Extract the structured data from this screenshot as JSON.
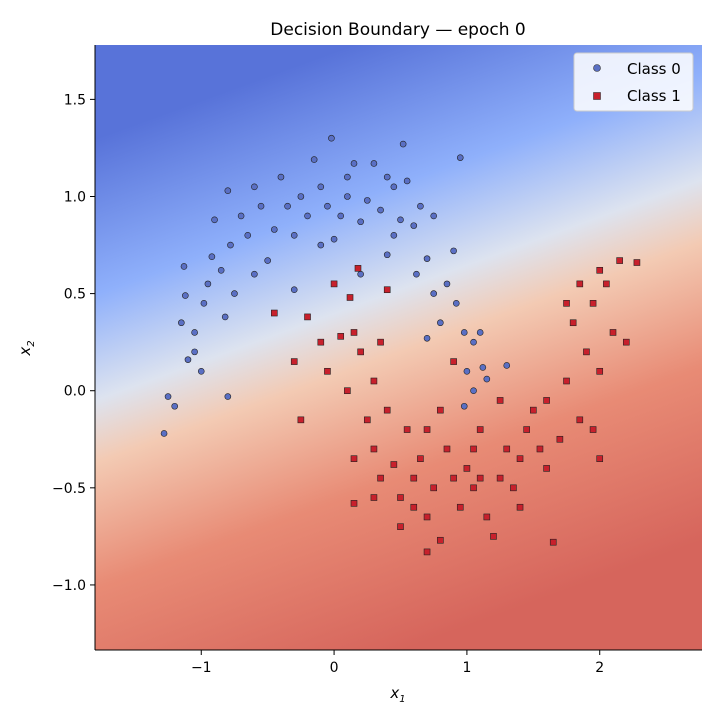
{
  "chart_data": {
    "type": "scatter",
    "title": "Decision Boundary — epoch 0",
    "xlabel": "x",
    "xlabel_sub": "1",
    "ylabel": "x",
    "ylabel_sub": "2",
    "xlim": [
      -1.8,
      2.77
    ],
    "ylim": [
      -1.335,
      1.78
    ],
    "xticks": [
      -1,
      0,
      1,
      2
    ],
    "xtick_labels": [
      "−1",
      "0",
      "1",
      "2"
    ],
    "yticks": [
      -1.0,
      -0.5,
      0.0,
      0.5,
      1.0,
      1.5
    ],
    "ytick_labels": [
      "−1.0",
      "−0.5",
      "0.0",
      "0.5",
      "1.0",
      "1.5"
    ],
    "grid": false,
    "legend_position": "top-right",
    "background": "decision-surface coolwarm gradient (blue top-left, red bottom-right)",
    "colors": {
      "class0": "#5a6fc4",
      "class1": "#c8202c",
      "blue": "#3f60d8",
      "red": "#d6605a"
    },
    "series": [
      {
        "name": "Class 0",
        "marker": "circle",
        "points": [
          [
            -1.28,
            -0.22
          ],
          [
            -1.25,
            -0.03
          ],
          [
            -1.2,
            -0.08
          ],
          [
            -1.13,
            0.64
          ],
          [
            -1.12,
            0.49
          ],
          [
            -1.15,
            0.35
          ],
          [
            -1.1,
            0.16
          ],
          [
            -1.05,
            0.2
          ],
          [
            -1.0,
            0.1
          ],
          [
            -0.98,
            0.45
          ],
          [
            -0.95,
            0.55
          ],
          [
            -0.92,
            0.69
          ],
          [
            -0.9,
            0.88
          ],
          [
            -0.85,
            0.62
          ],
          [
            -0.82,
            0.38
          ],
          [
            -0.8,
            1.03
          ],
          [
            -0.78,
            0.75
          ],
          [
            -0.75,
            0.5
          ],
          [
            -0.8,
            -0.03
          ],
          [
            -0.7,
            0.9
          ],
          [
            -0.65,
            0.8
          ],
          [
            -0.6,
            1.05
          ],
          [
            -0.55,
            0.95
          ],
          [
            -0.5,
            0.67
          ],
          [
            -0.45,
            0.83
          ],
          [
            -0.4,
            1.1
          ],
          [
            -0.35,
            0.95
          ],
          [
            -0.3,
            0.8
          ],
          [
            -0.25,
            1.0
          ],
          [
            -0.2,
            0.9
          ],
          [
            -0.15,
            1.19
          ],
          [
            -0.1,
            1.05
          ],
          [
            -0.05,
            0.95
          ],
          [
            -0.02,
            1.3
          ],
          [
            0.0,
            0.78
          ],
          [
            0.05,
            0.9
          ],
          [
            0.1,
            1.1
          ],
          [
            0.15,
            1.17
          ],
          [
            0.2,
            0.87
          ],
          [
            0.25,
            0.98
          ],
          [
            0.3,
            1.17
          ],
          [
            0.35,
            0.93
          ],
          [
            0.4,
            1.1
          ],
          [
            0.45,
            0.8
          ],
          [
            0.5,
            0.88
          ],
          [
            0.52,
            1.27
          ],
          [
            0.55,
            1.08
          ],
          [
            0.6,
            0.85
          ],
          [
            0.62,
            0.6
          ],
          [
            0.65,
            0.95
          ],
          [
            0.7,
            0.68
          ],
          [
            0.75,
            0.5
          ],
          [
            0.75,
            0.9
          ],
          [
            0.8,
            0.35
          ],
          [
            0.85,
            0.55
          ],
          [
            0.9,
            0.72
          ],
          [
            0.95,
            1.2
          ],
          [
            0.92,
            0.45
          ],
          [
            0.98,
            0.3
          ],
          [
            1.0,
            0.1
          ],
          [
            1.05,
            0.25
          ],
          [
            1.1,
            0.3
          ],
          [
            1.12,
            0.12
          ],
          [
            1.15,
            0.06
          ],
          [
            1.05,
            0.0
          ],
          [
            0.98,
            -0.08
          ],
          [
            1.3,
            0.13
          ],
          [
            0.7,
            0.27
          ],
          [
            -0.3,
            0.52
          ],
          [
            0.2,
            0.6
          ],
          [
            -0.1,
            0.75
          ],
          [
            0.4,
            0.7
          ],
          [
            -1.05,
            0.3
          ],
          [
            -0.6,
            0.6
          ],
          [
            0.1,
            1.0
          ],
          [
            0.45,
            1.05
          ]
        ]
      },
      {
        "name": "Class 1",
        "marker": "square",
        "points": [
          [
            -0.45,
            0.4
          ],
          [
            -0.3,
            0.15
          ],
          [
            -0.25,
            -0.15
          ],
          [
            -0.2,
            0.38
          ],
          [
            -0.1,
            0.25
          ],
          [
            0.0,
            0.55
          ],
          [
            -0.05,
            0.1
          ],
          [
            0.05,
            0.28
          ],
          [
            0.1,
            0.0
          ],
          [
            0.12,
            0.48
          ],
          [
            0.15,
            0.3
          ],
          [
            0.18,
            0.63
          ],
          [
            0.2,
            0.2
          ],
          [
            0.25,
            -0.15
          ],
          [
            0.3,
            0.05
          ],
          [
            0.35,
            0.25
          ],
          [
            0.4,
            0.52
          ],
          [
            0.15,
            -0.35
          ],
          [
            0.15,
            -0.58
          ],
          [
            0.3,
            -0.3
          ],
          [
            0.35,
            -0.45
          ],
          [
            0.45,
            -0.38
          ],
          [
            0.5,
            -0.55
          ],
          [
            0.5,
            -0.7
          ],
          [
            0.6,
            -0.45
          ],
          [
            0.65,
            -0.35
          ],
          [
            0.7,
            -0.65
          ],
          [
            0.7,
            -0.83
          ],
          [
            0.75,
            -0.5
          ],
          [
            0.8,
            -0.77
          ],
          [
            0.85,
            -0.3
          ],
          [
            0.9,
            -0.45
          ],
          [
            0.95,
            -0.6
          ],
          [
            1.0,
            -0.4
          ],
          [
            1.05,
            -0.5
          ],
          [
            1.1,
            -0.2
          ],
          [
            1.15,
            -0.65
          ],
          [
            1.2,
            -0.75
          ],
          [
            1.25,
            -0.45
          ],
          [
            1.3,
            -0.3
          ],
          [
            1.35,
            -0.5
          ],
          [
            1.4,
            -0.35
          ],
          [
            1.45,
            -0.2
          ],
          [
            1.5,
            -0.1
          ],
          [
            1.55,
            -0.3
          ],
          [
            1.6,
            -0.05
          ],
          [
            1.65,
            -0.78
          ],
          [
            1.7,
            -0.25
          ],
          [
            1.75,
            0.05
          ],
          [
            1.8,
            0.35
          ],
          [
            1.85,
            -0.15
          ],
          [
            1.9,
            0.2
          ],
          [
            1.95,
            0.45
          ],
          [
            2.0,
            0.1
          ],
          [
            2.05,
            0.55
          ],
          [
            2.0,
            0.62
          ],
          [
            2.1,
            0.3
          ],
          [
            2.15,
            0.67
          ],
          [
            2.2,
            0.25
          ],
          [
            2.28,
            0.66
          ],
          [
            1.75,
            0.45
          ],
          [
            1.85,
            0.55
          ],
          [
            1.95,
            -0.2
          ],
          [
            2.0,
            -0.35
          ],
          [
            1.05,
            -0.3
          ],
          [
            0.55,
            -0.2
          ],
          [
            0.8,
            -0.1
          ],
          [
            0.9,
            0.15
          ],
          [
            1.25,
            -0.05
          ],
          [
            1.4,
            -0.6
          ],
          [
            0.7,
            -0.2
          ],
          [
            0.4,
            -0.1
          ],
          [
            0.6,
            -0.6
          ],
          [
            1.1,
            -0.45
          ],
          [
            1.6,
            -0.4
          ],
          [
            0.3,
            -0.55
          ]
        ]
      }
    ]
  }
}
